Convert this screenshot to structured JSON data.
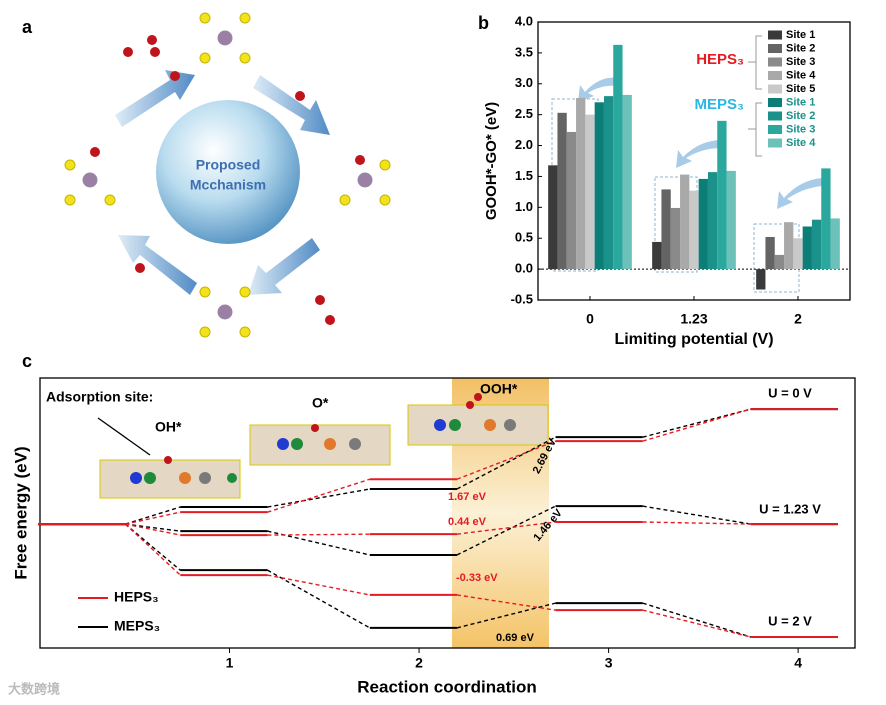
{
  "panel_labels": [
    "a",
    "b",
    "c"
  ],
  "illustration": {
    "lines": [
      "Proposed",
      "Mcchanism"
    ]
  },
  "watermark": "大数跨境",
  "chart_data": [
    {
      "type": "bar",
      "ylabel": "GOOH*-GO* (eV)",
      "xlabel": "Limiting potential (V)",
      "categories": [
        "0",
        "1.23",
        "2"
      ],
      "ylim": [
        -0.5,
        4.0
      ],
      "yticks": [
        -0.5,
        {
          "value": 0,
          "label": "0.0"
        },
        0.5,
        {
          "value": 1,
          "label": "1.0"
        },
        1.5,
        {
          "value": 2,
          "label": "2.0"
        },
        2.5,
        {
          "value": 3,
          "label": "3.0"
        },
        3.5,
        {
          "value": 4,
          "label": "4.0"
        }
      ],
      "groups": [
        {
          "name": "HEPS₃",
          "color": "#e31b23"
        },
        {
          "name": "MEPS₃",
          "color": "#2bb6e3"
        }
      ],
      "series": [
        {
          "name": "Site 1",
          "color": "#3a3a3a",
          "values": [
            1.68,
            0.44,
            -0.33
          ]
        },
        {
          "name": "Site 2",
          "color": "#646464",
          "values": [
            2.53,
            1.29,
            0.52
          ]
        },
        {
          "name": "Site 3",
          "color": "#8a8a8a",
          "values": [
            2.22,
            0.99,
            0.23
          ]
        },
        {
          "name": "Site 4",
          "color": "#a9a9a9",
          "values": [
            2.77,
            1.53,
            0.76
          ]
        },
        {
          "name": "Site 5",
          "color": "#c9c9c9",
          "values": [
            2.5,
            1.27,
            0.5
          ]
        },
        {
          "name": "Site 1",
          "color": "#0d7e77",
          "values": [
            2.7,
            1.46,
            0.69
          ]
        },
        {
          "name": "Site 2",
          "color": "#1b9289",
          "values": [
            2.8,
            1.57,
            0.8
          ]
        },
        {
          "name": "Site 3",
          "color": "#2aa89e",
          "values": [
            3.63,
            2.4,
            1.63
          ]
        },
        {
          "name": "Site 4",
          "color": "#6cc1b9",
          "values": [
            2.82,
            1.59,
            0.82
          ]
        }
      ]
    },
    {
      "type": "line",
      "ylabel": "Free energy (eV)",
      "xlabel": "Reaction coordination",
      "xlim": [
        0,
        4.3
      ],
      "xticks": [
        1,
        2,
        3,
        4
      ],
      "ylim": [
        -5.3,
        6.25
      ],
      "x": [
        0.22,
        0.97,
        1.97,
        2.95,
        3.98
      ],
      "potentials": [
        "U = 0 V",
        "U = 1.23 V",
        "U = 2 V"
      ],
      "series": [
        {
          "name": "HEPS₃",
          "color": "#e31b23",
          "values": [
            [
              0,
              0.51,
              1.92,
              3.55,
              4.92
            ],
            [
              0,
              -0.47,
              -0.43,
              0.09,
              0
            ],
            [
              0,
              -2.18,
              -3.03,
              -3.68,
              -4.83
            ]
          ]
        },
        {
          "name": "MEPS₃",
          "color": "#000000",
          "values": [
            [
              0,
              0.73,
              1.5,
              3.72,
              4.92
            ],
            [
              0,
              -0.3,
              -1.32,
              0.77,
              0
            ],
            [
              0,
              -1.97,
              -4.44,
              -3.38,
              -4.83
            ]
          ]
        }
      ],
      "annotations": [
        {
          "text": "Adsorption site:",
          "color": "#000000"
        },
        {
          "text": "OH*",
          "color": "#000000"
        },
        {
          "text": "O*",
          "color": "#000000"
        },
        {
          "text": "OOH*",
          "color": "#000000"
        },
        {
          "text": "1.67 eV",
          "color": "#e31b23"
        },
        {
          "text": "2.69 eV",
          "color": "#000000"
        },
        {
          "text": "0.44 eV",
          "color": "#e31b23"
        },
        {
          "text": "1.46 eV",
          "color": "#000000"
        },
        {
          "text": "-0.33 eV",
          "color": "#e31b23"
        },
        {
          "text": "0.69 eV",
          "color": "#000000"
        }
      ]
    }
  ]
}
